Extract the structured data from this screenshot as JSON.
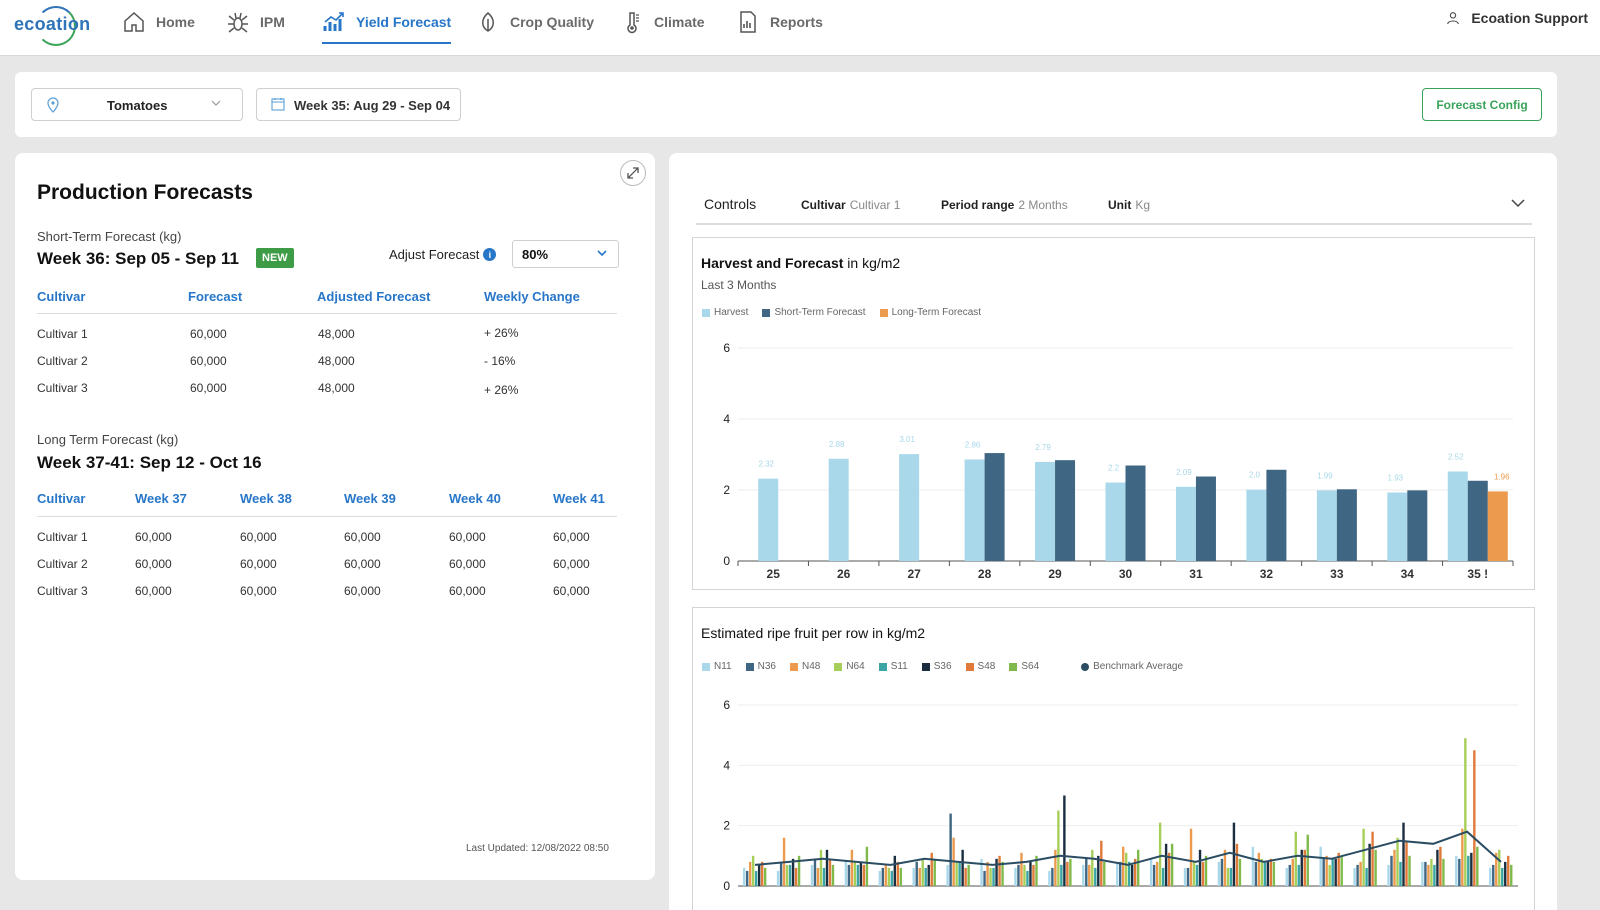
{
  "brand": {
    "logo_text": "ecoation"
  },
  "nav": {
    "items": [
      {
        "label": "Home",
        "icon": "home-icon",
        "active": false
      },
      {
        "label": "IPM",
        "icon": "bug-icon",
        "active": false
      },
      {
        "label": "Yield Forecast",
        "icon": "chart-icon",
        "active": true
      },
      {
        "label": "Crop Quality",
        "icon": "leaf-icon",
        "active": false
      },
      {
        "label": "Climate",
        "icon": "thermometer-icon",
        "active": false
      },
      {
        "label": "Reports",
        "icon": "report-icon",
        "active": false
      }
    ],
    "user": "Ecoation Support"
  },
  "filters": {
    "crop": "Tomatoes",
    "week": "Week 35: Aug 29 - Sep 04",
    "config_button": "Forecast Config"
  },
  "production": {
    "title": "Production Forecasts",
    "short_term": {
      "label": "Short-Term Forecast (kg)",
      "week": "Week 36: Sep 05 - Sep 11",
      "badge": "NEW",
      "adjust_label": "Adjust Forecast",
      "adjust_value": "80%",
      "headers": [
        "Cultivar",
        "Forecast",
        "Adjusted Forecast",
        "Weekly Change"
      ],
      "rows": [
        [
          "Cultivar 1",
          "60,000",
          "48,000",
          "+ 26%"
        ],
        [
          "Cultivar 2",
          "60,000",
          "48,000",
          "- 16%"
        ],
        [
          "Cultivar 3",
          "60,000",
          "48,000",
          "+ 26%"
        ]
      ]
    },
    "long_term": {
      "label": "Long Term Forecast (kg)",
      "week": "Week 37-41: Sep 12 - Oct 16",
      "headers": [
        "Cultivar",
        "Week 37",
        "Week 38",
        "Week 39",
        "Week 40",
        "Week 41"
      ],
      "rows": [
        [
          "Cultivar 1",
          "60,000",
          "60,000",
          "60,000",
          "60,000",
          "60,000"
        ],
        [
          "Cultivar 2",
          "60,000",
          "60,000",
          "60,000",
          "60,000",
          "60,000"
        ],
        [
          "Cultivar 3",
          "60,000",
          "60,000",
          "60,000",
          "60,000",
          "60,000"
        ]
      ]
    },
    "last_updated": "Last Updated: 12/08/2022 08:50"
  },
  "controls": {
    "title": "Controls",
    "cultivar_label": "Cultivar",
    "cultivar_value": "Cultivar 1",
    "period_label": "Period range",
    "period_value": "2 Months",
    "unit_label": "Unit",
    "unit_value": "Kg"
  },
  "chart_titles": {
    "harvest_bold": "Harvest and Forecast",
    "harvest_rest": "in kg/m2",
    "harvest_sub": "Last  3 Months",
    "ripe": "Estimated ripe fruit per row in kg/m2"
  },
  "colors": {
    "harvest": "#a8d8ea",
    "short_term": "#3f6682",
    "long_term": "#eb9a4e",
    "accent_blue": "#2776c8",
    "accent_green": "#3aa35a"
  },
  "chart_data": [
    {
      "type": "bar",
      "title": "Harvest and Forecast in kg/m2",
      "subtitle": "Last  3 Months",
      "categories": [
        "25",
        "26",
        "27",
        "28",
        "29",
        "30",
        "31",
        "32",
        "33",
        "34",
        "35"
      ],
      "last_category_suffix": "!",
      "ylim": [
        0,
        6
      ],
      "yticks": [
        0,
        2,
        4,
        6
      ],
      "grid": true,
      "legend": "top-left",
      "series": [
        {
          "name": "Harvest",
          "color": "#a8d8ea",
          "values": [
            2.32,
            2.88,
            3.01,
            2.86,
            2.79,
            2.21,
            2.09,
            2.01,
            1.99,
            1.93,
            2.52
          ],
          "labels": [
            "2.32",
            "2.88",
            "3.01",
            "2.86",
            "2.79",
            "2.2",
            "2.09",
            "2.0",
            "1.99",
            "1.93",
            "2.52"
          ]
        },
        {
          "name": "Short-Term Forecast",
          "color": "#3f6682",
          "values": [
            null,
            null,
            null,
            3.04,
            2.84,
            2.69,
            2.38,
            2.57,
            2.02,
            1.99,
            2.26
          ]
        },
        {
          "name": "Long-Term Forecast",
          "color": "#eb9a4e",
          "values": [
            null,
            null,
            null,
            null,
            null,
            null,
            null,
            null,
            null,
            null,
            1.96
          ],
          "labels": [
            "",
            "",
            "",
            "",
            "",
            "",
            "",
            "",
            "",
            "",
            "1.96"
          ]
        }
      ]
    },
    {
      "type": "bar",
      "title": "Estimated ripe fruit per row in kg/m2",
      "ylim": [
        0,
        6
      ],
      "yticks": [
        0,
        2,
        4,
        6
      ],
      "legend": "top-left",
      "series": [
        {
          "name": "N11",
          "color": "#a8d8ea",
          "values": [
            0.6,
            0.5,
            0.7,
            0.8,
            0.5,
            0.6,
            0.7,
            0.9,
            0.6,
            0.5,
            0.7,
            0.8,
            0.9,
            0.6,
            0.8,
            1.3,
            0.6,
            1.3,
            0.6,
            0.7,
            0.8,
            1.0,
            0.6
          ]
        },
        {
          "name": "N36",
          "color": "#3f6682",
          "values": [
            0.5,
            0.8,
            0.9,
            0.7,
            0.6,
            0.8,
            2.4,
            0.5,
            0.7,
            0.6,
            0.9,
            0.8,
            0.7,
            0.6,
            0.9,
            0.8,
            0.7,
            0.9,
            0.7,
            1.0,
            0.8,
            0.9,
            0.7
          ]
        },
        {
          "name": "N48",
          "color": "#eb9a4e",
          "values": [
            0.8,
            1.6,
            0.6,
            1.2,
            0.7,
            0.6,
            1.6,
            0.8,
            1.1,
            1.2,
            0.7,
            1.3,
            0.8,
            1.9,
            1.2,
            1.1,
            0.9,
            1.0,
            0.8,
            1.2,
            0.7,
            1.9,
            1.1
          ]
        },
        {
          "name": "N64",
          "color": "#a6cf5a",
          "values": [
            1.0,
            0.7,
            1.2,
            0.8,
            0.6,
            0.9,
            0.8,
            0.6,
            0.7,
            2.5,
            1.2,
            1.1,
            2.1,
            0.8,
            0.6,
            0.9,
            1.8,
            0.7,
            1.9,
            1.6,
            0.9,
            4.9,
            1.2
          ]
        },
        {
          "name": "S11",
          "color": "#3aa5a4",
          "values": [
            0.5,
            0.7,
            0.6,
            0.7,
            0.5,
            0.6,
            0.8,
            0.6,
            0.5,
            0.7,
            0.6,
            0.8,
            0.6,
            0.7,
            0.6,
            0.8,
            0.7,
            0.9,
            0.6,
            0.8,
            0.7,
            1.0,
            0.6
          ]
        },
        {
          "name": "S36",
          "color": "#1a2e40",
          "values": [
            0.7,
            0.9,
            1.2,
            0.8,
            1.0,
            0.7,
            1.2,
            0.9,
            0.8,
            3.0,
            1.0,
            0.7,
            1.4,
            1.2,
            2.1,
            0.8,
            1.2,
            0.9,
            1.4,
            2.1,
            1.2,
            1.1,
            0.8
          ]
        },
        {
          "name": "S48",
          "color": "#e07a3a",
          "values": [
            0.8,
            0.6,
            0.9,
            0.7,
            0.8,
            1.1,
            0.6,
            1.0,
            0.7,
            0.8,
            1.5,
            0.9,
            1.1,
            0.8,
            1.4,
            0.9,
            1.2,
            1.1,
            1.8,
            1.5,
            1.3,
            4.5,
            1.0
          ]
        },
        {
          "name": "S64",
          "color": "#7fba4a",
          "values": [
            0.6,
            1.0,
            0.7,
            1.3,
            0.6,
            0.9,
            0.7,
            0.8,
            1.0,
            0.9,
            0.8,
            1.2,
            1.4,
            1.0,
            0.9,
            0.8,
            1.7,
            1.0,
            1.2,
            1.0,
            0.9,
            1.3,
            0.7
          ]
        },
        {
          "name": "Benchmark Average",
          "color": "#2b4d63",
          "type": "line",
          "values": [
            0.7,
            0.8,
            0.9,
            0.8,
            0.7,
            0.9,
            0.8,
            0.7,
            0.8,
            1.0,
            0.9,
            0.7,
            1.0,
            0.8,
            1.1,
            0.8,
            1.0,
            0.9,
            1.2,
            1.5,
            1.4,
            1.8,
            0.8
          ]
        }
      ],
      "points": 23
    }
  ]
}
